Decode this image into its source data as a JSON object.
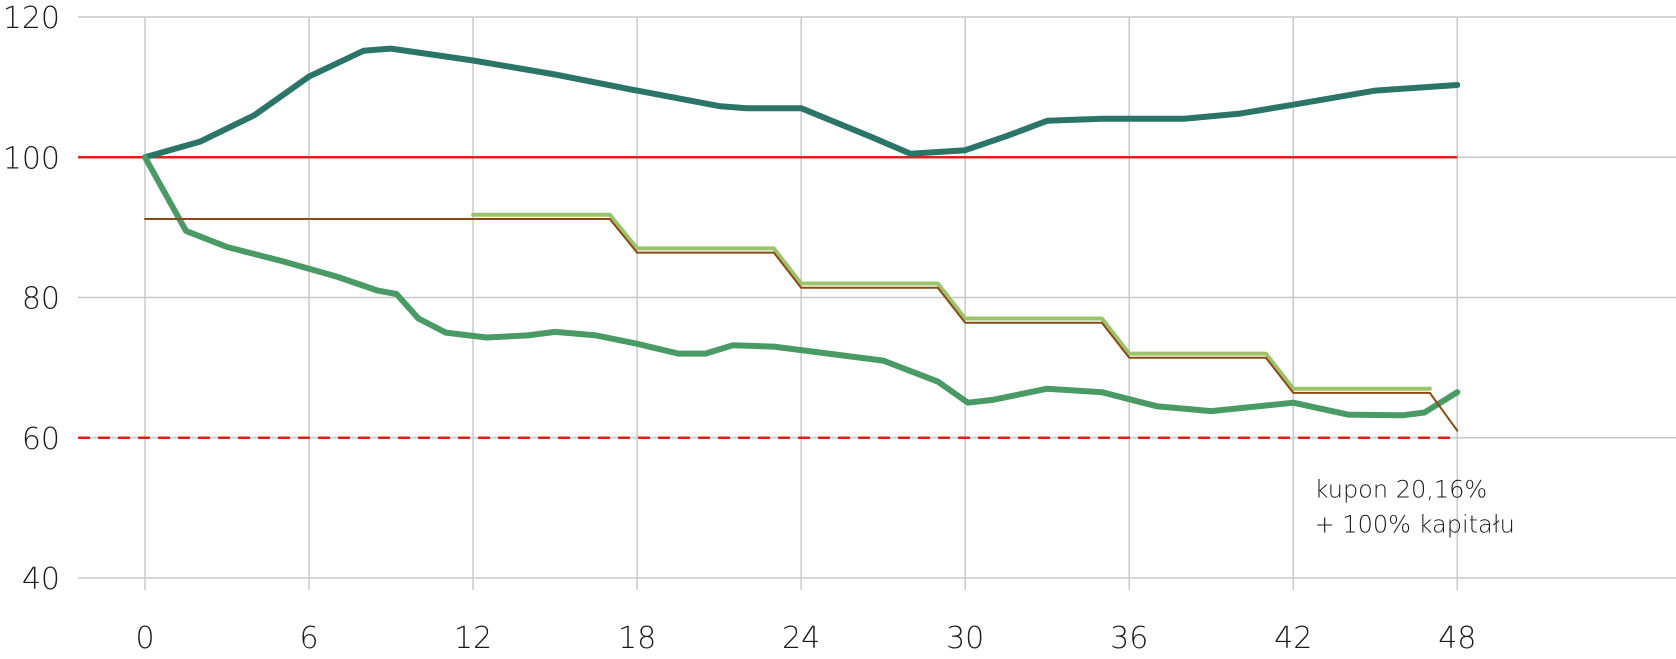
{
  "chart_data": {
    "type": "line",
    "title": "",
    "xlabel": "",
    "ylabel": "",
    "xlim": [
      0,
      56
    ],
    "ylim": [
      40,
      120
    ],
    "x_ticks": [
      0,
      6,
      12,
      18,
      24,
      30,
      36,
      42,
      48
    ],
    "y_ticks": [
      40,
      60,
      80,
      100,
      120
    ],
    "grid": {
      "vertical": true,
      "horizontal": true
    },
    "annotation": {
      "line1": "kupon 20,16%",
      "line2": "+ 100% kapitału",
      "x": 43,
      "y1": 51.5,
      "y2": 46.5
    },
    "reference_lines": [
      {
        "value": 100,
        "color": "#e02020",
        "style": "solid"
      },
      {
        "value": 60,
        "color": "#e02020",
        "style": "dashed"
      }
    ],
    "series": [
      {
        "color": "#2a7468",
        "width": 6,
        "points": [
          [
            0,
            100
          ],
          [
            2,
            102.2
          ],
          [
            4,
            106
          ],
          [
            6,
            111.5
          ],
          [
            8,
            115.2
          ],
          [
            9,
            115.5
          ],
          [
            12,
            113.8
          ],
          [
            15,
            111.8
          ],
          [
            18,
            109.5
          ],
          [
            21,
            107.3
          ],
          [
            22,
            107
          ],
          [
            24,
            107
          ],
          [
            26.5,
            103
          ],
          [
            28,
            100.5
          ],
          [
            30,
            101
          ],
          [
            31.5,
            103
          ],
          [
            33,
            105.2
          ],
          [
            35,
            105.5
          ],
          [
            38,
            105.5
          ],
          [
            40,
            106.2
          ],
          [
            42,
            107.5
          ],
          [
            45,
            109.5
          ],
          [
            48,
            110.3
          ]
        ]
      },
      {
        "color": "#4a9a66",
        "width": 6,
        "points": [
          [
            0,
            100
          ],
          [
            1.5,
            89.5
          ],
          [
            3,
            87.2
          ],
          [
            5,
            85.2
          ],
          [
            7,
            83
          ],
          [
            8.5,
            81
          ],
          [
            9.2,
            80.5
          ],
          [
            10,
            77
          ],
          [
            11,
            75
          ],
          [
            12.5,
            74.3
          ],
          [
            14,
            74.6
          ],
          [
            15,
            75.1
          ],
          [
            16.5,
            74.6
          ],
          [
            18,
            73.4
          ],
          [
            19.5,
            72
          ],
          [
            20.5,
            72
          ],
          [
            21.5,
            73.2
          ],
          [
            23,
            73
          ],
          [
            25,
            72
          ],
          [
            27,
            71
          ],
          [
            29,
            68
          ],
          [
            30.1,
            65
          ],
          [
            31,
            65.4
          ],
          [
            33,
            67
          ],
          [
            35,
            66.5
          ],
          [
            37,
            64.5
          ],
          [
            39,
            63.8
          ],
          [
            41,
            64.6
          ],
          [
            42,
            65
          ],
          [
            44,
            63.3
          ],
          [
            46,
            63.2
          ],
          [
            46.8,
            63.6
          ],
          [
            48,
            66.5
          ]
        ]
      },
      {
        "color": "#9bc46a",
        "width": 4,
        "points": [
          [
            12,
            91.8
          ],
          [
            17,
            91.8
          ],
          [
            18,
            87
          ],
          [
            23,
            87
          ],
          [
            24,
            82
          ],
          [
            29,
            82
          ],
          [
            30,
            77
          ],
          [
            35,
            77
          ],
          [
            36,
            72
          ],
          [
            41,
            72
          ],
          [
            42,
            67
          ],
          [
            47,
            67
          ]
        ]
      },
      {
        "color": "#8a4a14",
        "width": 2,
        "points": [
          [
            0,
            91.2
          ],
          [
            17,
            91.2
          ],
          [
            18,
            86.4
          ],
          [
            23,
            86.4
          ],
          [
            24,
            81.4
          ],
          [
            29,
            81.4
          ],
          [
            30,
            76.4
          ],
          [
            35,
            76.4
          ],
          [
            36,
            71.4
          ],
          [
            41,
            71.4
          ],
          [
            42,
            66.4
          ],
          [
            47,
            66.4
          ],
          [
            48,
            61
          ]
        ]
      }
    ]
  }
}
